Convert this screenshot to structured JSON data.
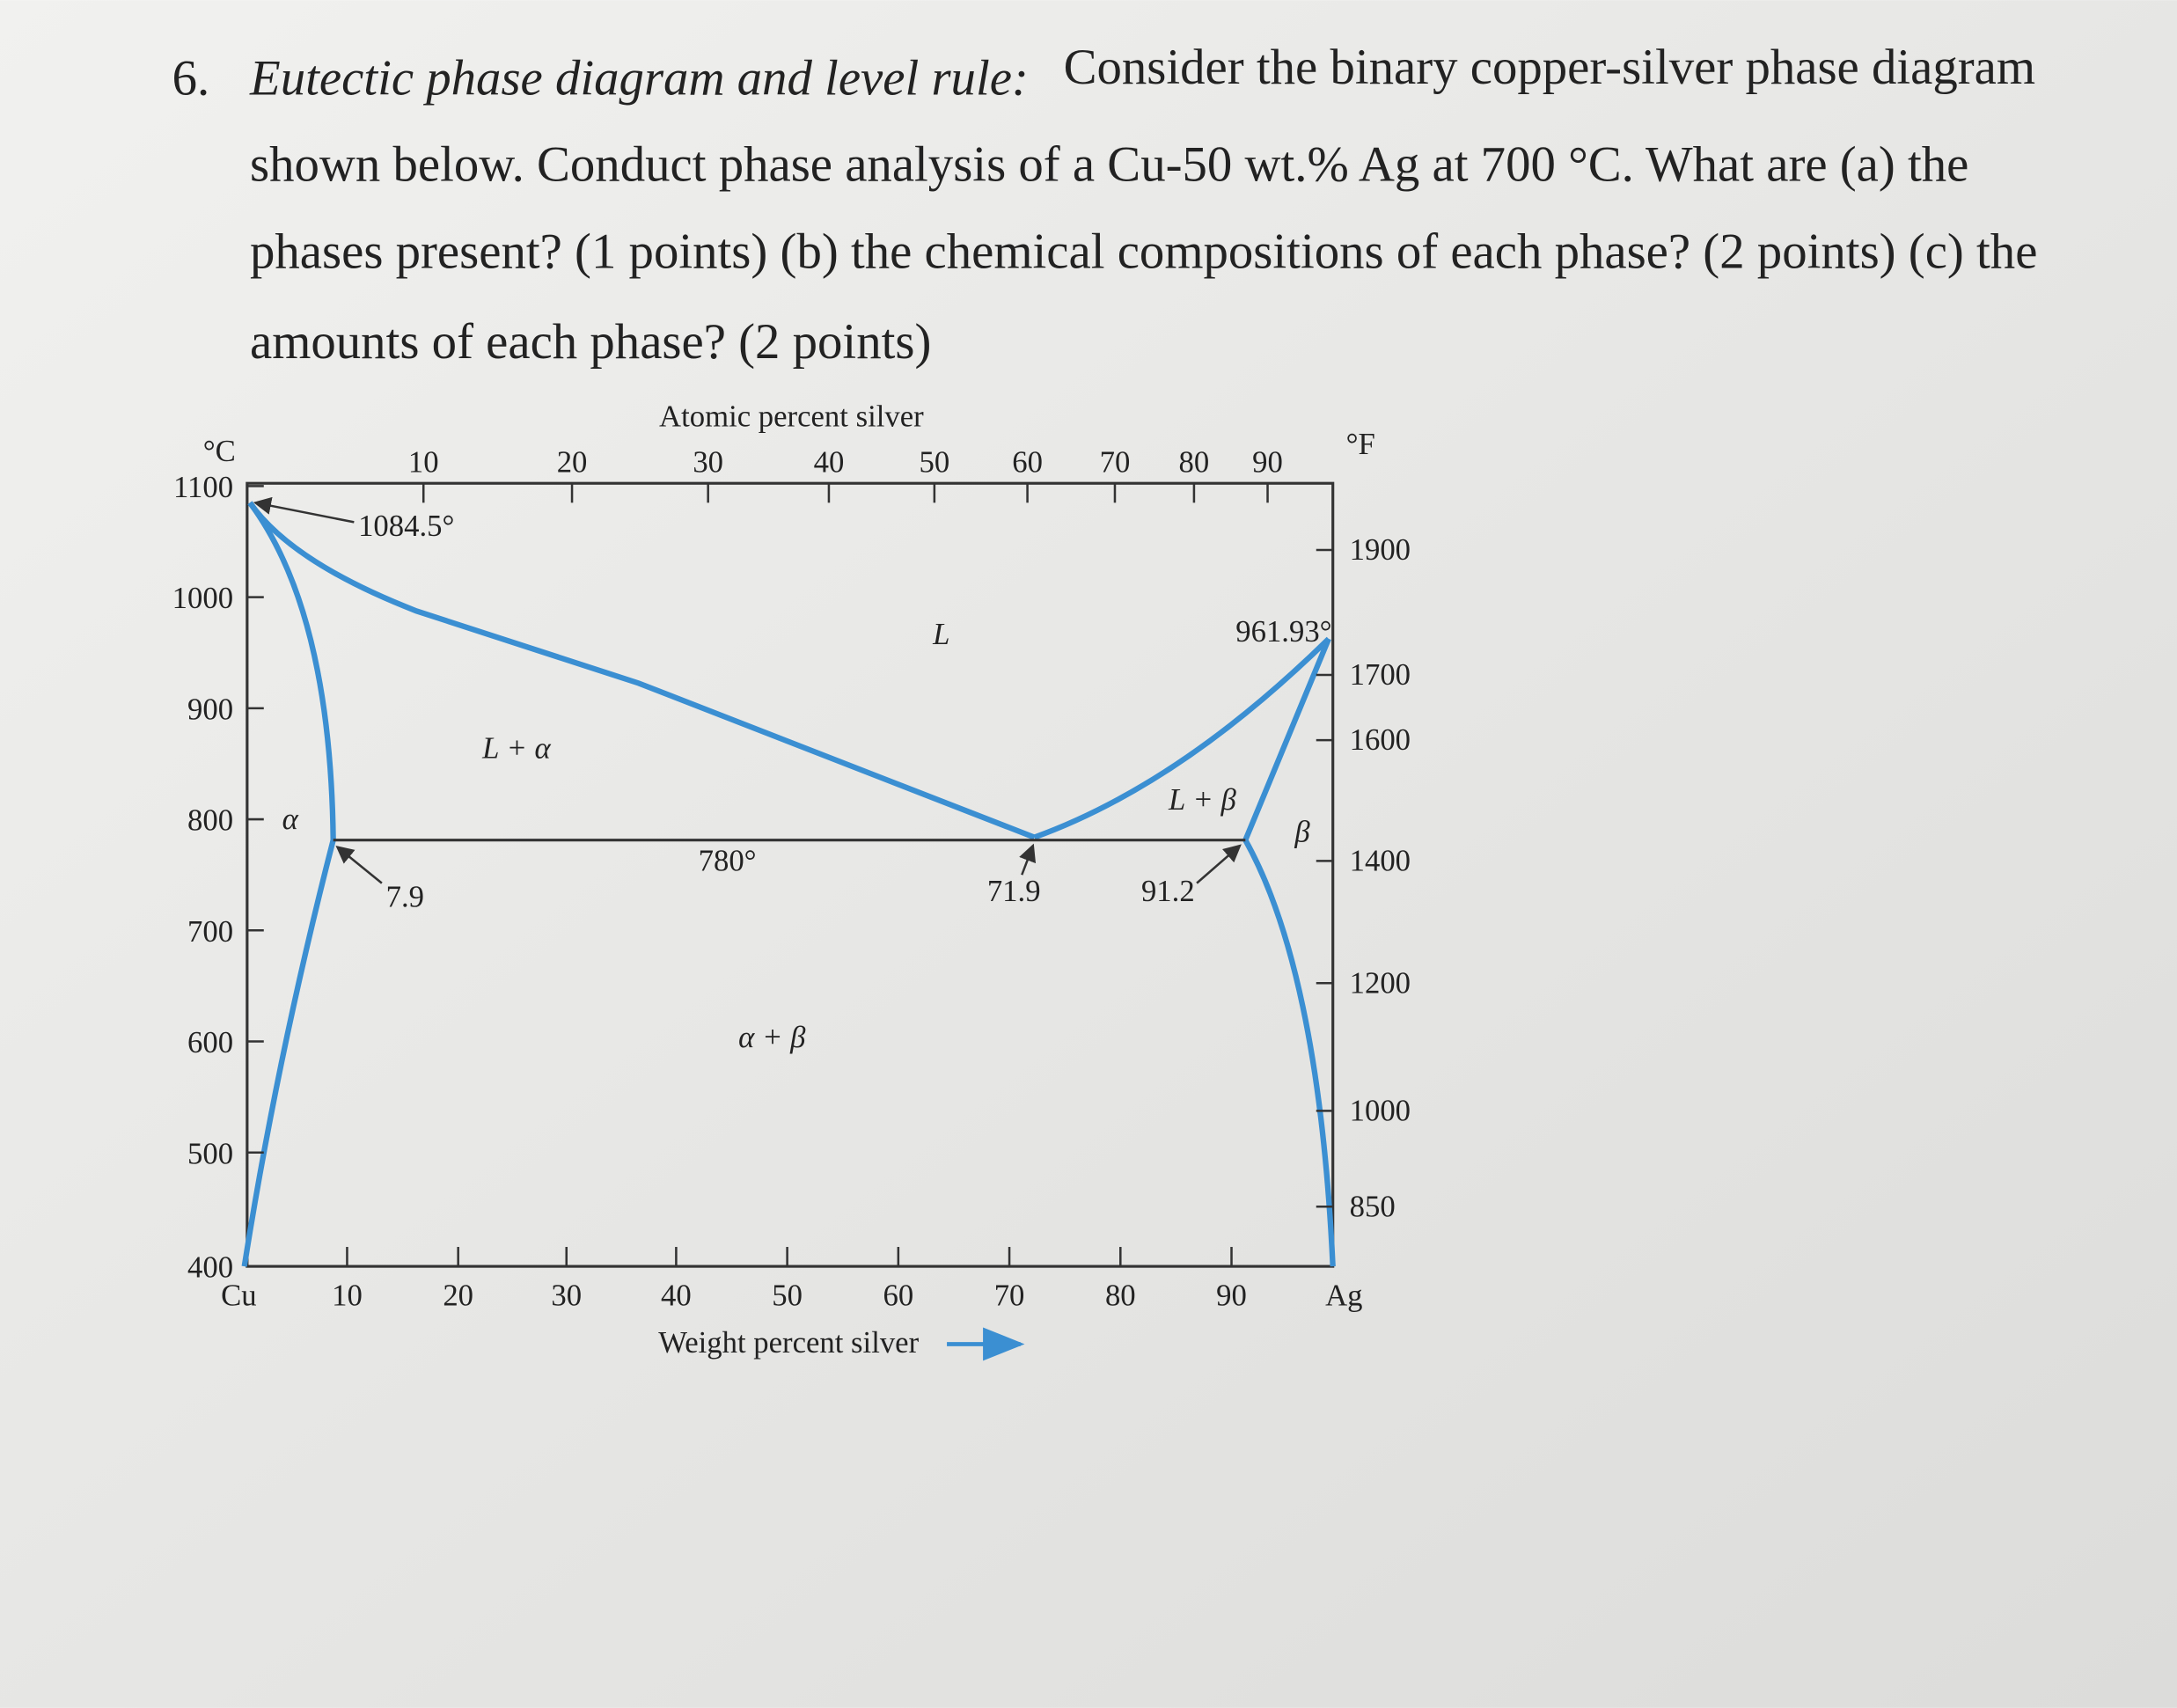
{
  "question": {
    "number": "6.",
    "title": "Eutectic phase diagram and level rule:",
    "lines": [
      "Consider the binary copper-silver phase diagram",
      "shown below. Conduct phase analysis of a Cu-50 wt.% Ag at 700 °C. What are (a) the",
      "phases present? (1 points) (b) the chemical compositions of each phase? (2 points) (c) the",
      "amounts of each phase? (2 points)"
    ]
  },
  "figure": {
    "top_axis_label": "Atomic percent silver",
    "bottom_axis_label": "Weight percent silver",
    "left_unit": "°C",
    "right_unit": "°F",
    "left_ticks": [
      "1100",
      "1000",
      "900",
      "800",
      "700",
      "600",
      "500",
      "400"
    ],
    "top_ticks": [
      "10",
      "20",
      "30",
      "40",
      "50",
      "60",
      "70",
      "80",
      "90"
    ],
    "right_ticks": [
      "1900",
      "1700",
      "1600",
      "1400",
      "1200",
      "1000",
      "850"
    ],
    "bottom_ticks": [
      "Cu",
      "10",
      "20",
      "30",
      "40",
      "50",
      "60",
      "70",
      "80",
      "90",
      "Ag"
    ],
    "regions": [
      "L",
      "L + α",
      "α",
      "β",
      "L + β",
      "α + β"
    ],
    "annotations": [
      "1084.5°",
      "961.93°",
      "780°",
      "7.9",
      "71.9",
      "91.2"
    ]
  }
}
